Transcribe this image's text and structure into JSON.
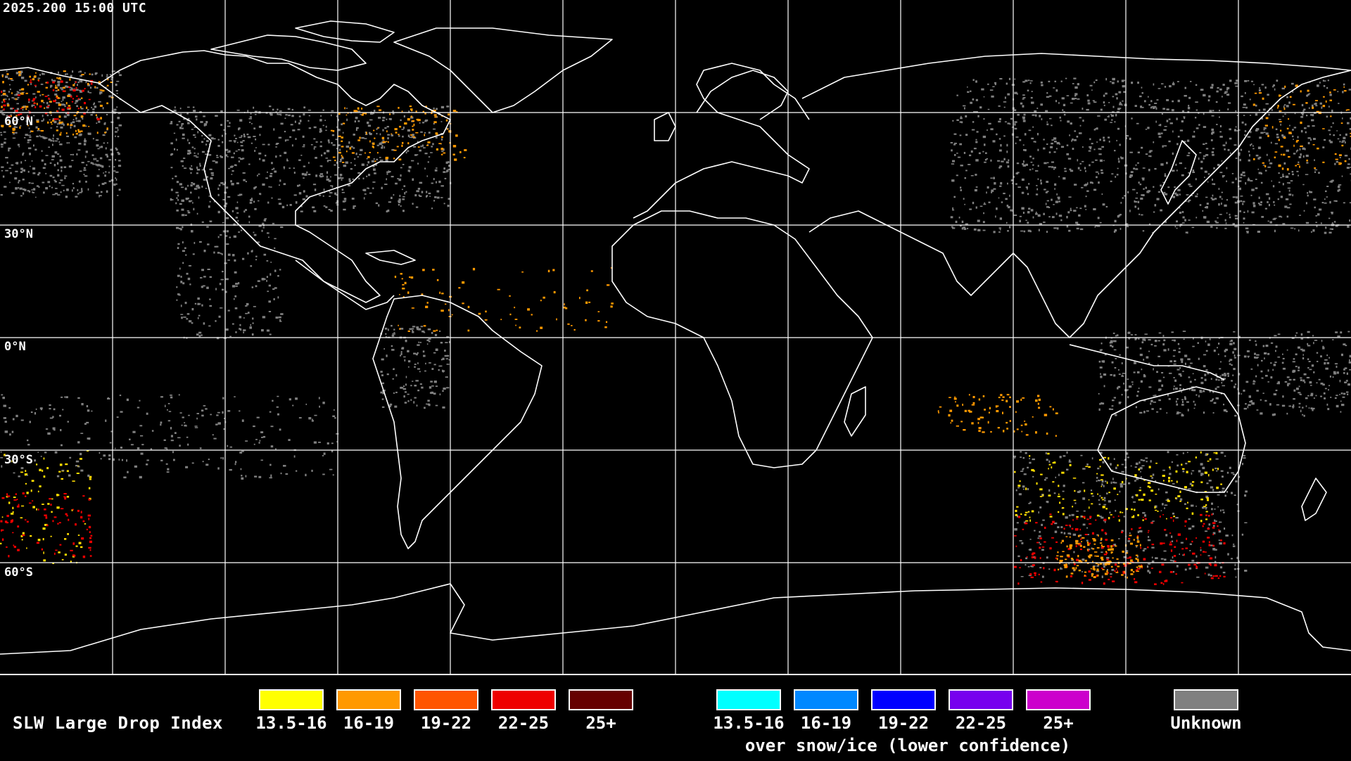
{
  "header": {
    "timestamp": "2025.200 15:00 UTC"
  },
  "map": {
    "lat_labels": [
      "60°N",
      "30°N",
      "0°N",
      "30°S",
      "60°S"
    ],
    "grid_color": "#ffffff",
    "coast_color": "#ffffff",
    "background_color": "#000000"
  },
  "legend": {
    "title": "SLW Large Drop Index",
    "liquid": [
      {
        "label": "13.5-16",
        "color": "#ffff00"
      },
      {
        "label": "16-19",
        "color": "#ff9900"
      },
      {
        "label": "19-22",
        "color": "#ff5500"
      },
      {
        "label": "22-25",
        "color": "#ee0000"
      },
      {
        "label": "25+",
        "color": "#660000"
      }
    ],
    "snow_ice": [
      {
        "label": "13.5-16",
        "color": "#00ffff"
      },
      {
        "label": "16-19",
        "color": "#0088ff"
      },
      {
        "label": "19-22",
        "color": "#0000ff"
      },
      {
        "label": "22-25",
        "color": "#7700ee"
      },
      {
        "label": "25+",
        "color": "#cc00cc"
      }
    ],
    "snow_ice_note": "over snow/ice (lower confidence)",
    "unknown": {
      "label": "Unknown",
      "color": "#808080"
    }
  }
}
